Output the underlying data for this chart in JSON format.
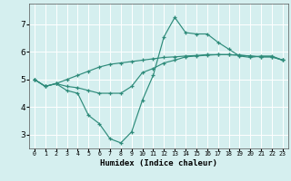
{
  "xlabel": "Humidex (Indice chaleur)",
  "x_values": [
    0,
    1,
    2,
    3,
    4,
    5,
    6,
    7,
    8,
    9,
    10,
    11,
    12,
    13,
    14,
    15,
    16,
    17,
    18,
    19,
    20,
    21,
    22,
    23
  ],
  "line1": [
    5.0,
    4.75,
    4.85,
    4.6,
    4.5,
    3.7,
    3.4,
    2.85,
    2.7,
    3.1,
    4.25,
    5.15,
    6.55,
    7.25,
    6.7,
    6.65,
    6.65,
    6.35,
    6.1,
    5.85,
    5.8,
    5.85,
    5.85,
    5.7
  ],
  "line2": [
    5.0,
    4.75,
    4.85,
    4.75,
    4.7,
    4.6,
    4.5,
    4.5,
    4.5,
    4.75,
    5.25,
    5.4,
    5.6,
    5.7,
    5.82,
    5.85,
    5.88,
    5.9,
    5.9,
    5.88,
    5.85,
    5.82,
    5.82,
    5.7
  ],
  "line3": [
    5.0,
    4.75,
    4.85,
    5.0,
    5.15,
    5.3,
    5.45,
    5.55,
    5.6,
    5.65,
    5.7,
    5.75,
    5.8,
    5.82,
    5.85,
    5.87,
    5.9,
    5.9,
    5.9,
    5.88,
    5.85,
    5.82,
    5.82,
    5.7
  ],
  "line_color": "#2e8b7a",
  "bg_color": "#d5efef",
  "grid_color": "#b8dede",
  "ylim": [
    2.5,
    7.75
  ],
  "xlim": [
    -0.5,
    23.5
  ],
  "yticks": [
    3,
    4,
    5,
    6,
    7
  ],
  "xtick_labels": [
    "0",
    "1",
    "2",
    "3",
    "4",
    "5",
    "6",
    "7",
    "8",
    "9",
    "10",
    "11",
    "12",
    "13",
    "14",
    "15",
    "16",
    "17",
    "18",
    "19",
    "20",
    "21",
    "22",
    "23"
  ]
}
